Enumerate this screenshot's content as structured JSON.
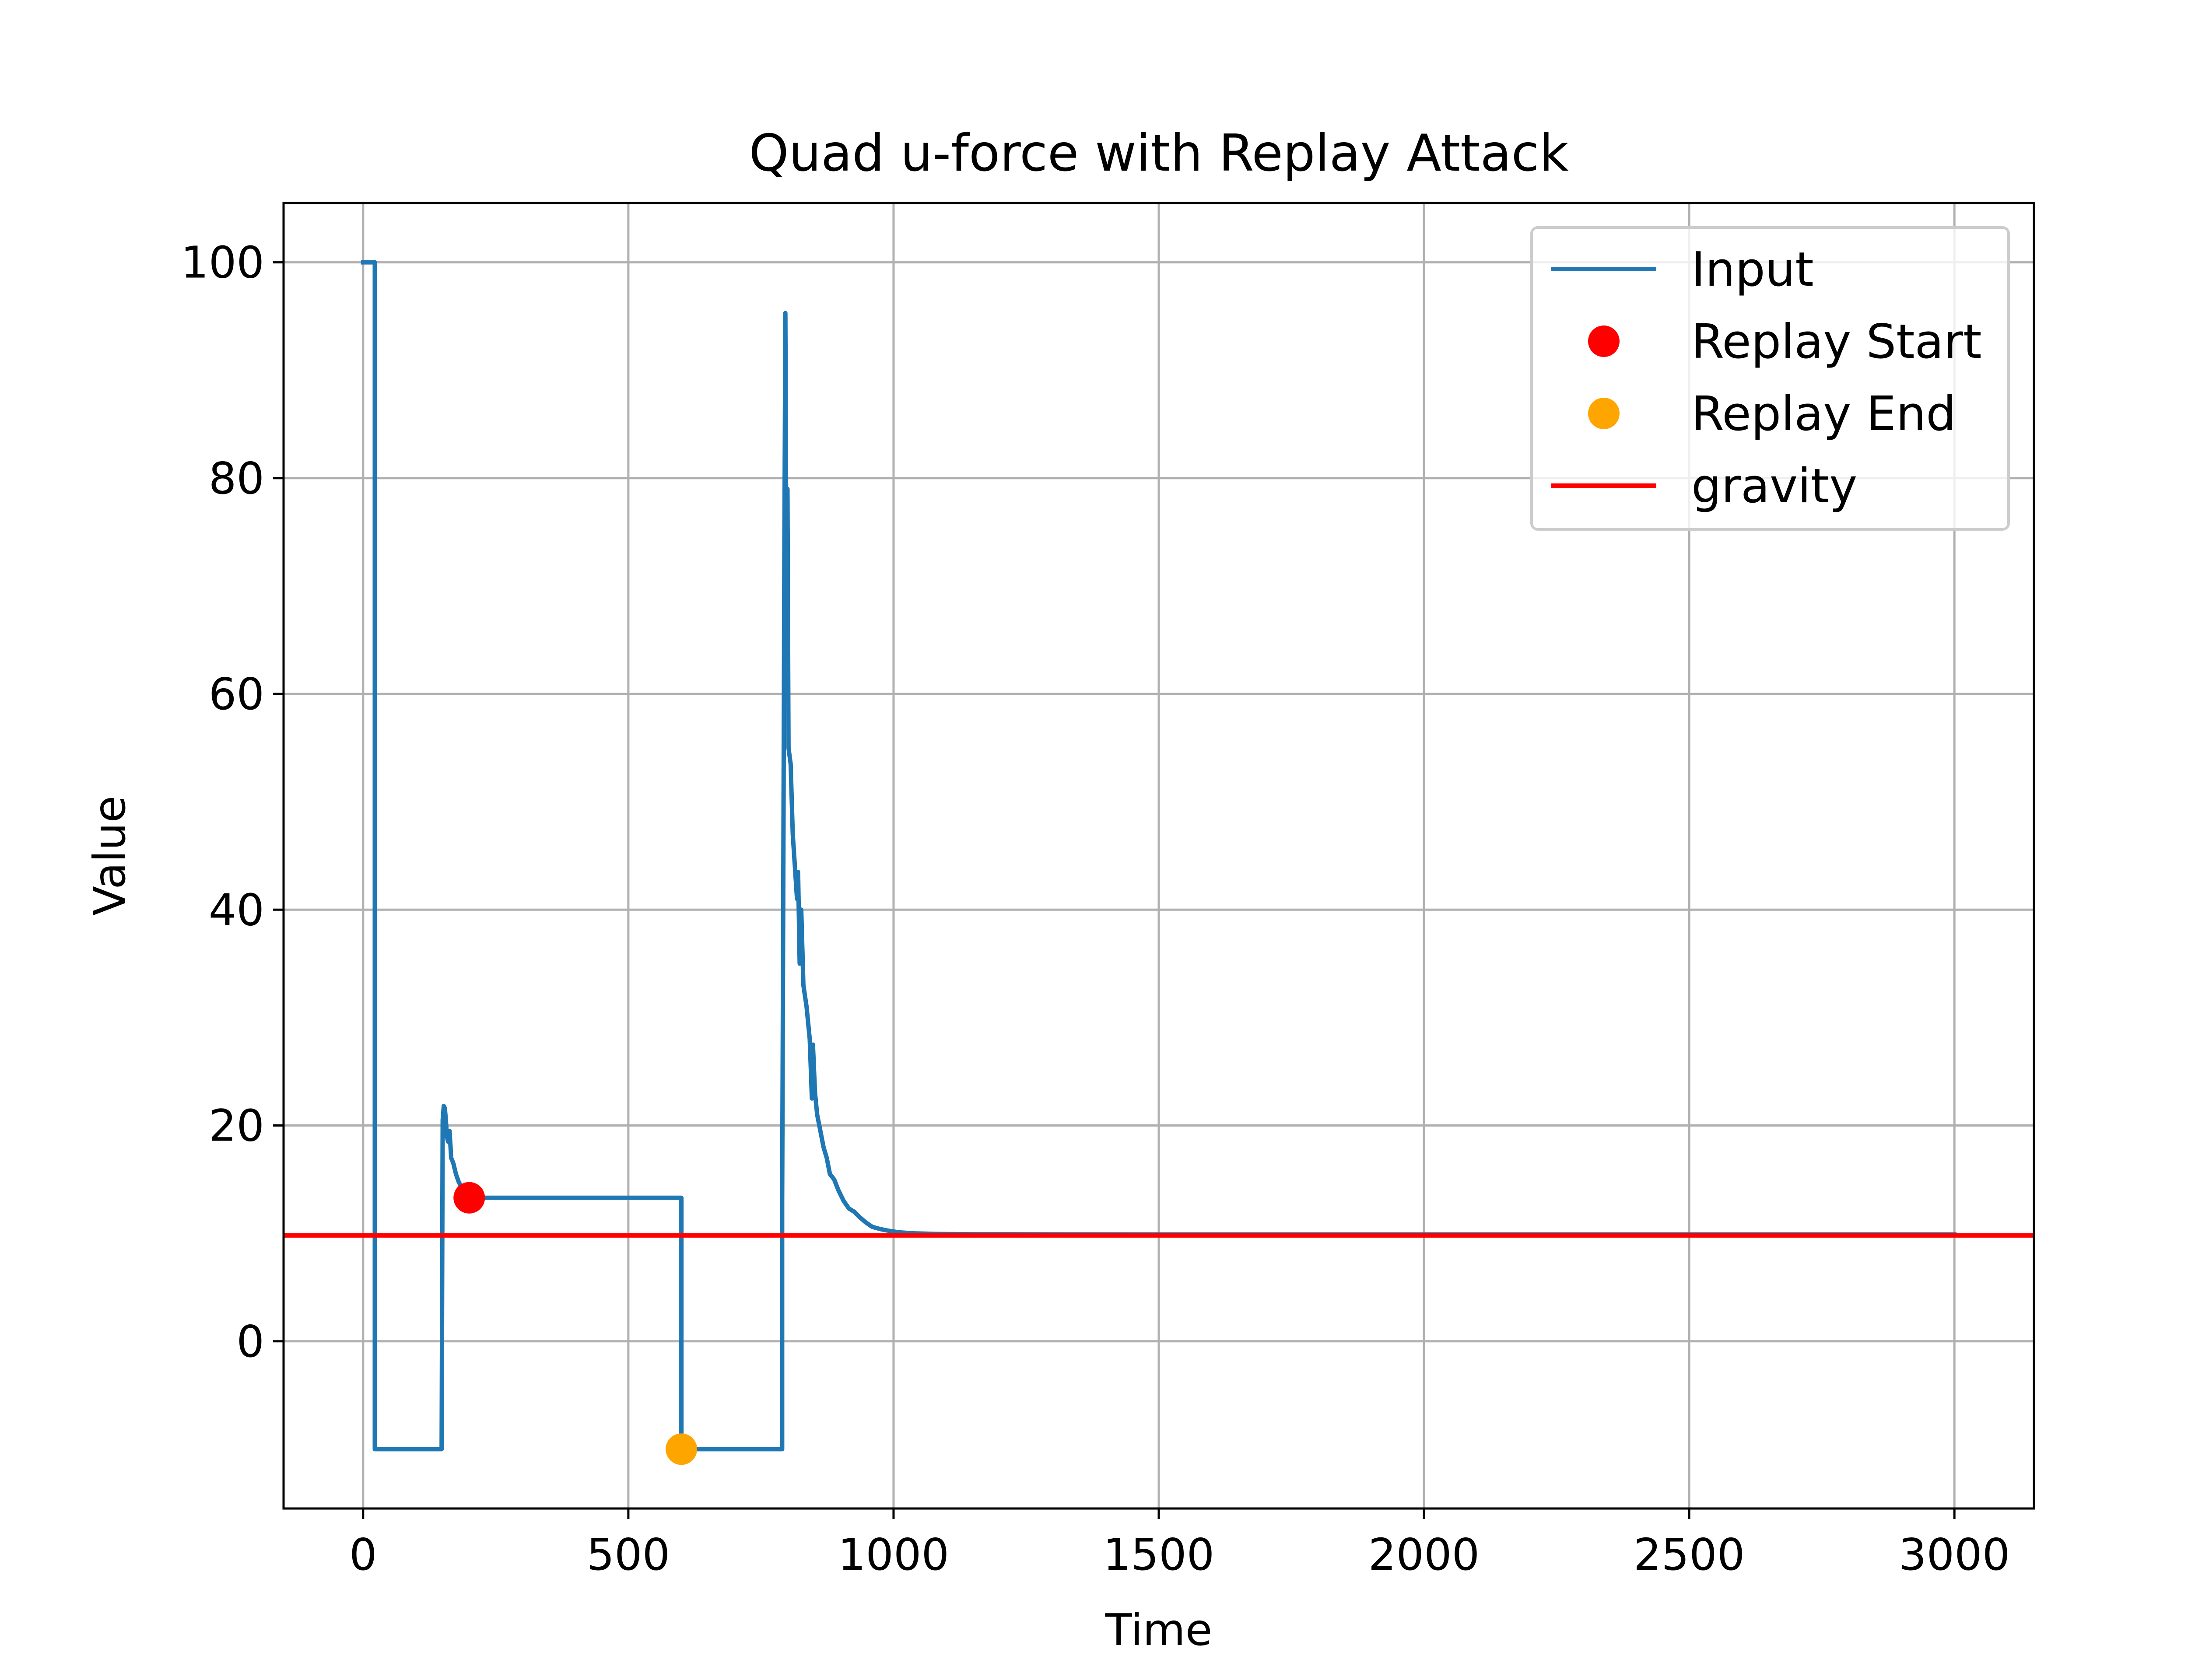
{
  "chart_data": {
    "type": "line",
    "title": "Quad u-force with Replay Attack",
    "xlabel": "Time",
    "ylabel": "Value",
    "xlim": [
      -150,
      3150
    ],
    "ylim": [
      -15.5,
      105.5
    ],
    "xticks": [
      0,
      500,
      1000,
      1500,
      2000,
      2500,
      3000
    ],
    "yticks": [
      0,
      20,
      40,
      60,
      80,
      100
    ],
    "grid": true,
    "legend_position": "upper right",
    "colors": {
      "input": "#1f77b4",
      "replay_start": "#ff0000",
      "replay_end": "#ffa500",
      "gravity": "#ff0000",
      "grid": "#b0b0b0"
    },
    "legend": [
      {
        "label": "Input",
        "kind": "line",
        "color": "#1f77b4"
      },
      {
        "label": "Replay Start",
        "kind": "marker",
        "color": "#ff0000"
      },
      {
        "label": "Replay End",
        "kind": "marker",
        "color": "#ffa500"
      },
      {
        "label": "gravity",
        "kind": "line",
        "color": "#ff0000"
      }
    ],
    "series": [
      {
        "name": "Input",
        "kind": "line",
        "color": "#1f77b4",
        "points": [
          [
            0,
            100
          ],
          [
            20,
            100
          ],
          [
            22,
            100
          ],
          [
            22,
            -10
          ],
          [
            148,
            -10
          ],
          [
            150,
            20.5
          ],
          [
            152,
            21.8
          ],
          [
            154,
            21.6
          ],
          [
            156,
            20.5
          ],
          [
            158,
            19
          ],
          [
            160,
            18.5
          ],
          [
            163,
            19.5
          ],
          [
            166,
            17
          ],
          [
            170,
            16.5
          ],
          [
            175,
            15.5
          ],
          [
            180,
            14.8
          ],
          [
            186,
            14.2
          ],
          [
            192,
            13.9
          ],
          [
            200,
            13.7
          ],
          [
            210,
            13.5
          ],
          [
            222,
            13.3
          ],
          [
            240,
            13.3
          ],
          [
            400,
            13.3
          ],
          [
            600,
            13.3
          ],
          [
            600,
            -10
          ],
          [
            790,
            -10
          ],
          [
            790,
            13
          ],
          [
            792,
            40
          ],
          [
            794,
            71
          ],
          [
            796,
            95.3
          ],
          [
            798,
            70
          ],
          [
            800,
            79
          ],
          [
            802,
            55
          ],
          [
            806,
            53.5
          ],
          [
            810,
            47
          ],
          [
            814,
            44
          ],
          [
            818,
            41
          ],
          [
            820,
            43.5
          ],
          [
            823,
            35
          ],
          [
            826,
            40
          ],
          [
            830,
            33
          ],
          [
            836,
            31
          ],
          [
            842,
            28
          ],
          [
            846,
            22.5
          ],
          [
            848,
            27.5
          ],
          [
            852,
            23
          ],
          [
            856,
            21
          ],
          [
            862,
            19.5
          ],
          [
            868,
            18
          ],
          [
            874,
            17
          ],
          [
            880,
            15.5
          ],
          [
            888,
            15
          ],
          [
            896,
            14
          ],
          [
            906,
            13
          ],
          [
            916,
            12.3
          ],
          [
            926,
            12
          ],
          [
            936,
            11.5
          ],
          [
            948,
            11
          ],
          [
            960,
            10.6
          ],
          [
            975,
            10.4
          ],
          [
            990,
            10.25
          ],
          [
            1010,
            10.1
          ],
          [
            1040,
            10.0
          ],
          [
            1080,
            9.95
          ],
          [
            1150,
            9.92
          ],
          [
            1500,
            9.9
          ],
          [
            2000,
            9.9
          ],
          [
            2500,
            9.9
          ],
          [
            3000,
            9.9
          ]
        ]
      },
      {
        "name": "Replay Start",
        "kind": "marker",
        "color": "#ff0000",
        "points": [
          [
            200,
            13.3
          ]
        ]
      },
      {
        "name": "Replay End",
        "kind": "marker",
        "color": "#ffa500",
        "points": [
          [
            600,
            -10
          ]
        ]
      },
      {
        "name": "gravity",
        "kind": "hline",
        "color": "#ff0000",
        "y": 9.81
      }
    ]
  }
}
